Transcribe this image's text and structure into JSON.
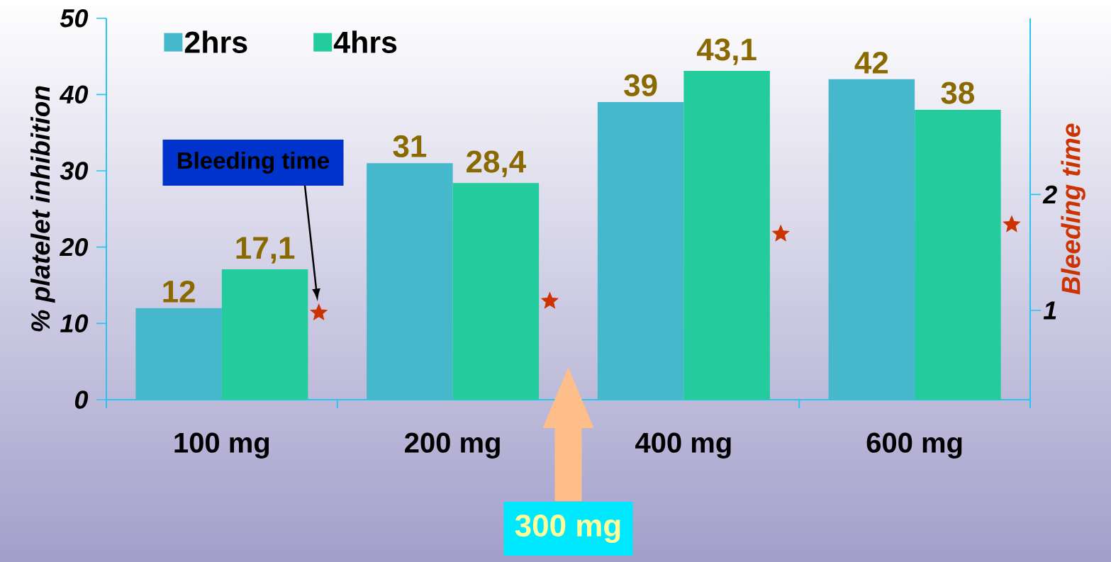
{
  "chart_data": {
    "type": "bar",
    "categories": [
      "100 mg",
      "200 mg",
      "400 mg",
      "600 mg"
    ],
    "series": [
      {
        "name": "2hrs",
        "color": "#45B8CC",
        "values": [
          12,
          31,
          39,
          42
        ],
        "value_labels": [
          "12",
          "31",
          "39",
          "42"
        ]
      },
      {
        "name": "4hrs",
        "color": "#22CC9C",
        "values": [
          17.1,
          28.4,
          43.1,
          38
        ],
        "value_labels": [
          "17,1",
          "28,4",
          "43,1",
          "38"
        ]
      },
      {
        "type": "scatter",
        "axis": "y2",
        "color": "#CC3300",
        "marker": "star",
        "values": [
          0.98,
          1.08,
          1.66,
          1.74
        ]
      }
    ],
    "ylabel": "% platelet inhibition",
    "y2label": "Bleeding time",
    "ylim": [
      0,
      50
    ],
    "yticks": [
      0,
      10,
      20,
      30,
      40,
      50
    ],
    "y2lim": [
      0.23,
      3.52
    ],
    "y2ticks": [
      1,
      2
    ],
    "legend": "top left",
    "annotations": [
      "Bleeding time",
      "300 mg"
    ]
  }
}
